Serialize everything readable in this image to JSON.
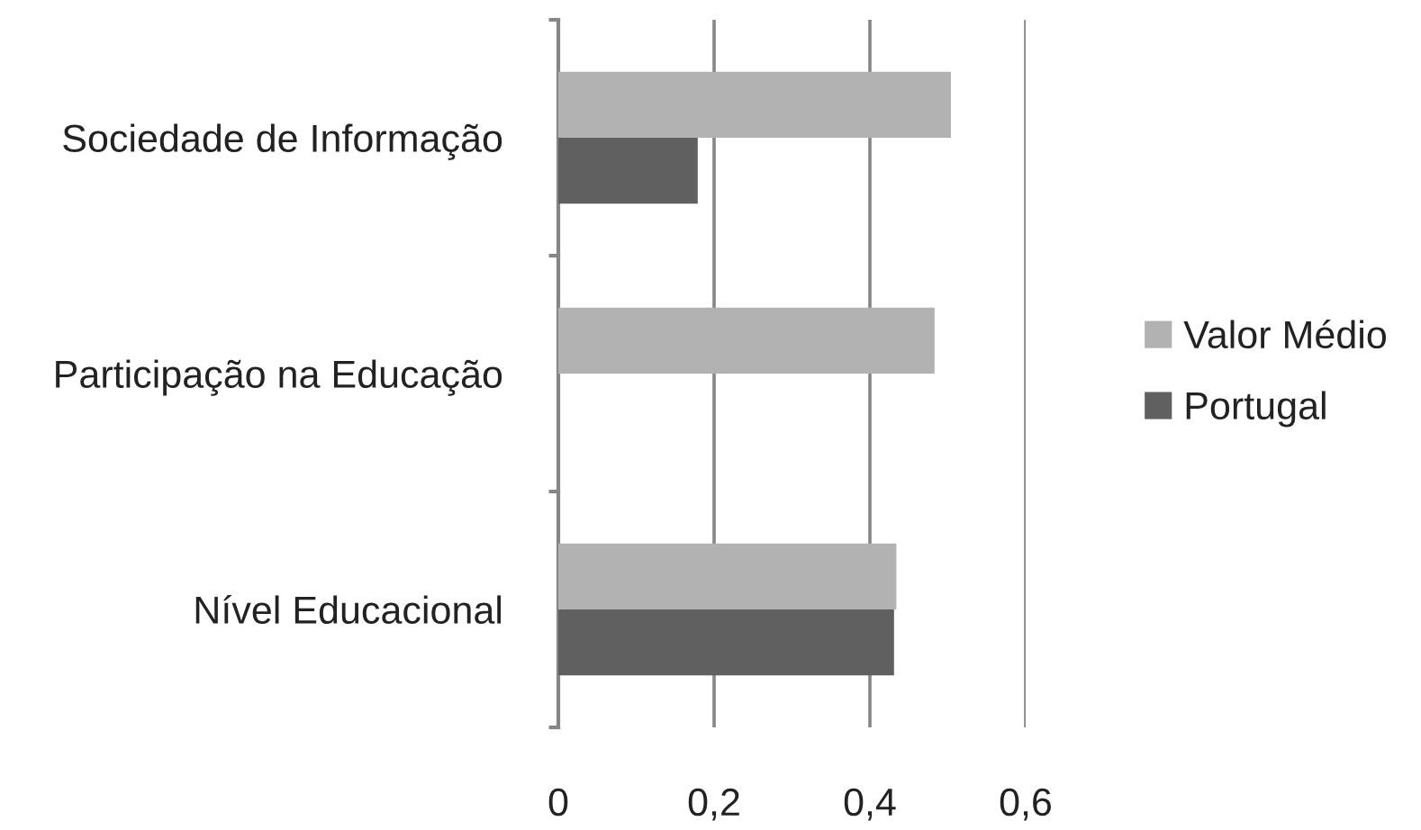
{
  "chart_data": {
    "type": "bar",
    "orientation": "horizontal",
    "categories": [
      "Sociedade de Informação",
      "Participação na Educação",
      "Nível Educacional"
    ],
    "series": [
      {
        "name": "Valor Médio",
        "color": "#b2b2b2",
        "values": [
          0.504,
          0.483,
          0.434
        ]
      },
      {
        "name": "Portugal",
        "color": "#606060",
        "values": [
          0.179,
          null,
          0.431
        ]
      }
    ],
    "xlim": [
      0,
      0.6
    ],
    "xticks": [
      0,
      {
        "value": 0.2,
        "label": "0,2"
      },
      {
        "value": 0.4,
        "label": "0,4"
      },
      {
        "value": 0.6,
        "label": "0,6"
      }
    ],
    "grid": "x",
    "legend": "right"
  }
}
